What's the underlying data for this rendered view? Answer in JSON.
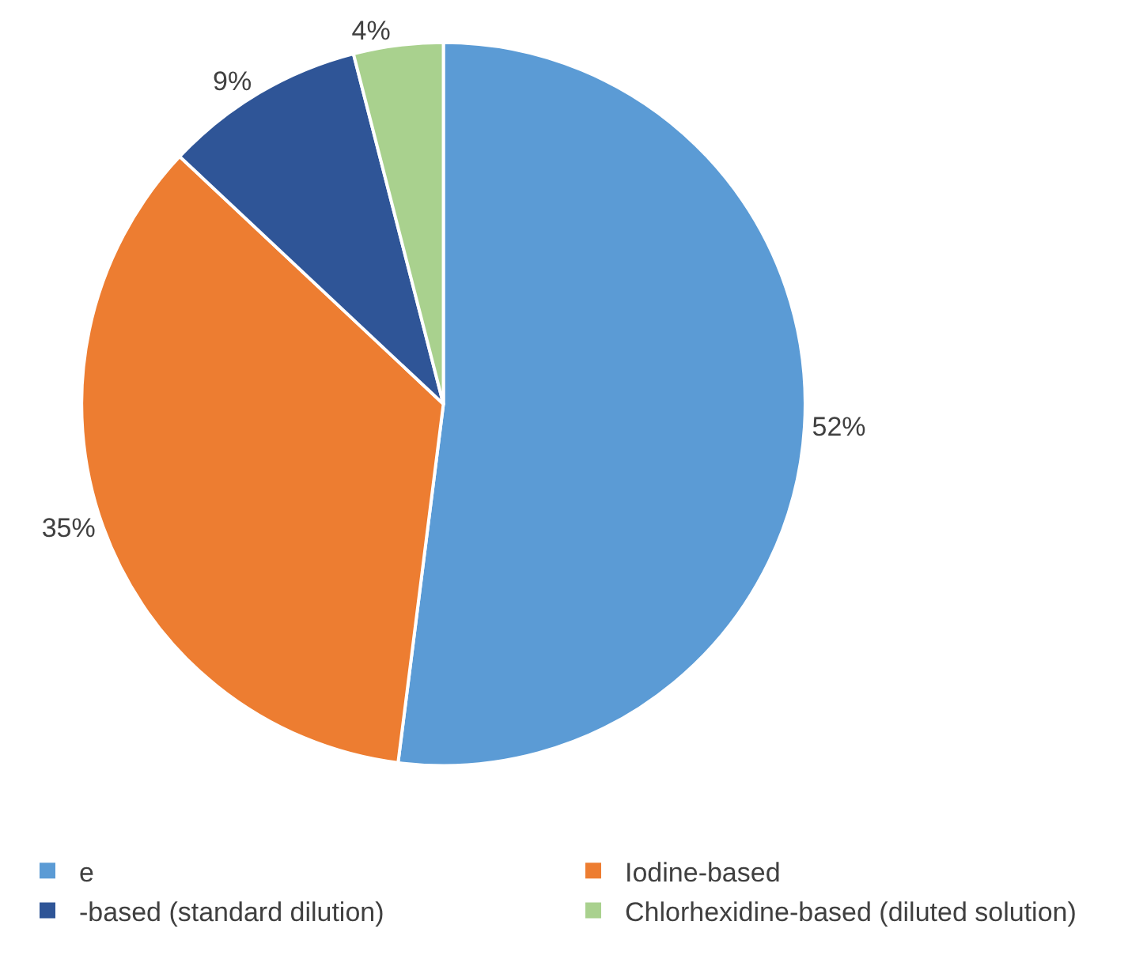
{
  "chart_data": {
    "type": "pie",
    "categories": [
      "e",
      "Iodine-based",
      "-based (standard dilution)",
      "Chlorhexidine-based (diluted solution)"
    ],
    "values": [
      52,
      35,
      9,
      4
    ],
    "colors": [
      "#5b9bd5",
      "#ed7d31",
      "#2f5597",
      "#a9d18e"
    ],
    "value_labels": [
      "52%",
      "35%",
      "9%",
      "4%"
    ],
    "legend": "bottom"
  }
}
